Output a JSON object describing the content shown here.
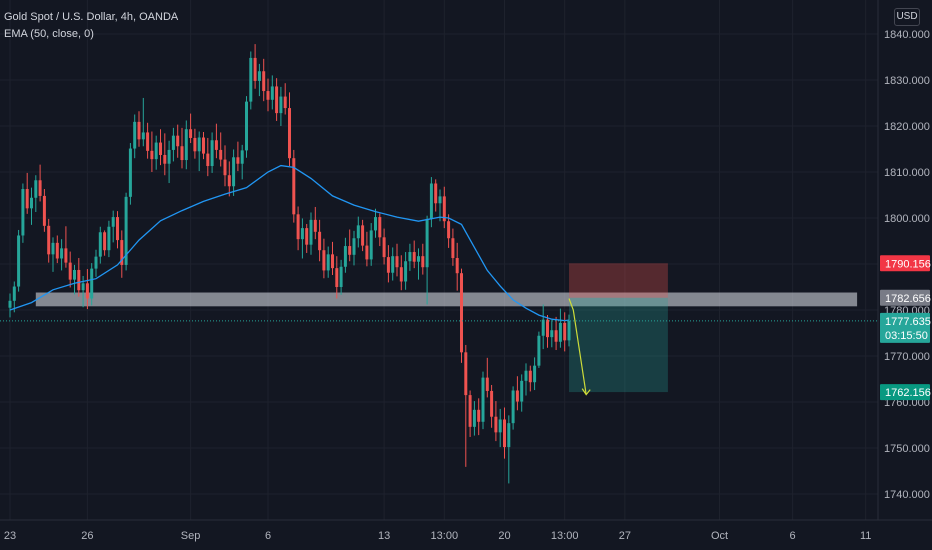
{
  "legend": {
    "title": "Gold Spot / U.S. Dollar, 4h, OANDA",
    "indicator": "EMA (50, close, 0)"
  },
  "currency_button": "USD",
  "colors": {
    "background": "#131722",
    "grid": "#1e222d",
    "up": "#26a69a",
    "down": "#ef5350",
    "ema": "#2196f3",
    "zone": "#d1d4dc",
    "target_badge": "#089981",
    "stop_badge": "#f23645",
    "price_badge": "#26a69a",
    "projection_arrow": "#cddc39"
  },
  "chart_data": {
    "type": "candlestick",
    "symbol": "Gold Spot / U.S. Dollar",
    "interval": "4h",
    "source": "OANDA",
    "ylim": [
      1734,
      1844
    ],
    "y_ticks": [
      1740,
      1750,
      1760,
      1770,
      1780,
      1790,
      1800,
      1810,
      1820,
      1830,
      1840
    ],
    "y_tick_labels": [
      "1740.000",
      "1750.000",
      "1760.000",
      "1770.000",
      "1780.000",
      "1790.000",
      "1800.000",
      "1810.000",
      "1820.000",
      "1830.000",
      "1840.000"
    ],
    "x_ticks": [
      {
        "label": "23",
        "bar": 0
      },
      {
        "label": "26",
        "bar": 18
      },
      {
        "label": "Sep",
        "bar": 42
      },
      {
        "label": "6",
        "bar": 60
      },
      {
        "label": "13",
        "bar": 87
      },
      {
        "label": "13:00",
        "bar": 101
      },
      {
        "label": "20",
        "bar": 115
      },
      {
        "label": "13:00",
        "bar": 129
      },
      {
        "label": "27",
        "bar": 143
      },
      {
        "label": "Oct",
        "bar": 165
      },
      {
        "label": "6",
        "bar": 182
      },
      {
        "label": "11",
        "bar": 199
      }
    ],
    "candles": [
      [
        1780.5,
        1783.6,
        1778.4,
        1782.0
      ],
      [
        1782.0,
        1786.2,
        1779.5,
        1785.1
      ],
      [
        1785.1,
        1797.4,
        1784.0,
        1796.2
      ],
      [
        1796.2,
        1807.5,
        1794.6,
        1806.3
      ],
      [
        1806.3,
        1809.8,
        1800.9,
        1802.1
      ],
      [
        1802.1,
        1806.6,
        1798.5,
        1804.4
      ],
      [
        1804.4,
        1809.3,
        1801.3,
        1808.2
      ],
      [
        1808.2,
        1811.6,
        1803.6,
        1804.8
      ],
      [
        1804.8,
        1806.3,
        1797.0,
        1798.3
      ],
      [
        1798.3,
        1799.8,
        1790.3,
        1792.1
      ],
      [
        1792.1,
        1795.8,
        1788.3,
        1794.6
      ],
      [
        1794.6,
        1796.2,
        1790.2,
        1791.2
      ],
      [
        1791.2,
        1795.4,
        1788.6,
        1793.4
      ],
      [
        1793.4,
        1798.2,
        1789.2,
        1790.3
      ],
      [
        1790.3,
        1792.7,
        1784.9,
        1786.6
      ],
      [
        1786.6,
        1789.8,
        1783.4,
        1788.7
      ],
      [
        1788.7,
        1791.3,
        1782.9,
        1784.3
      ],
      [
        1784.3,
        1787.4,
        1780.6,
        1785.8
      ],
      [
        1785.8,
        1788.9,
        1780.2,
        1782.5
      ],
      [
        1782.5,
        1790.2,
        1781.0,
        1789.0
      ],
      [
        1789.0,
        1793.1,
        1787.2,
        1791.6
      ],
      [
        1791.6,
        1798.1,
        1790.1,
        1796.9
      ],
      [
        1796.9,
        1797.3,
        1791.8,
        1793.0
      ],
      [
        1793.0,
        1799.4,
        1791.5,
        1798.1
      ],
      [
        1798.1,
        1801.6,
        1794.7,
        1800.2
      ],
      [
        1800.2,
        1801.5,
        1793.4,
        1795.2
      ],
      [
        1795.2,
        1797.3,
        1787.0,
        1789.8
      ],
      [
        1789.8,
        1805.5,
        1788.6,
        1804.6
      ],
      [
        1804.6,
        1816.3,
        1802.9,
        1815.1
      ],
      [
        1815.1,
        1822.5,
        1813.0,
        1820.9
      ],
      [
        1820.9,
        1823.2,
        1815.5,
        1817.1
      ],
      [
        1817.1,
        1826.1,
        1815.6,
        1818.6
      ],
      [
        1818.6,
        1820.7,
        1812.9,
        1814.6
      ],
      [
        1814.6,
        1818.8,
        1810.0,
        1812.8
      ],
      [
        1812.8,
        1817.9,
        1810.5,
        1816.4
      ],
      [
        1816.4,
        1819.3,
        1811.5,
        1813.7
      ],
      [
        1813.7,
        1818.4,
        1809.3,
        1811.8
      ],
      [
        1811.8,
        1816.8,
        1807.6,
        1814.8
      ],
      [
        1814.8,
        1819.6,
        1812.3,
        1817.9
      ],
      [
        1817.9,
        1820.3,
        1813.1,
        1815.6
      ],
      [
        1815.6,
        1819.6,
        1810.8,
        1812.6
      ],
      [
        1812.6,
        1821.2,
        1810.6,
        1819.3
      ],
      [
        1819.3,
        1822.7,
        1816.3,
        1817.4
      ],
      [
        1817.4,
        1819.4,
        1812.9,
        1814.5
      ],
      [
        1814.5,
        1818.8,
        1810.2,
        1817.5
      ],
      [
        1817.5,
        1818.7,
        1812.8,
        1814.0
      ],
      [
        1814.0,
        1817.4,
        1809.1,
        1811.3
      ],
      [
        1811.3,
        1818.6,
        1809.8,
        1816.9
      ],
      [
        1816.9,
        1820.5,
        1813.0,
        1814.8
      ],
      [
        1814.8,
        1818.6,
        1811.2,
        1812.7
      ],
      [
        1812.7,
        1815.8,
        1806.9,
        1809.3
      ],
      [
        1809.3,
        1812.3,
        1804.7,
        1806.9
      ],
      [
        1806.9,
        1814.9,
        1804.8,
        1813.2
      ],
      [
        1813.2,
        1816.6,
        1810.2,
        1811.8
      ],
      [
        1811.8,
        1815.9,
        1808.4,
        1814.7
      ],
      [
        1814.7,
        1826.5,
        1813.1,
        1825.3
      ],
      [
        1825.3,
        1836.2,
        1823.6,
        1834.8
      ],
      [
        1834.8,
        1837.8,
        1828.1,
        1829.8
      ],
      [
        1829.8,
        1833.5,
        1826.5,
        1831.9
      ],
      [
        1831.9,
        1834.6,
        1825.4,
        1827.6
      ],
      [
        1827.6,
        1830.3,
        1823.2,
        1825.7
      ],
      [
        1825.7,
        1831.0,
        1823.6,
        1828.6
      ],
      [
        1828.6,
        1830.4,
        1821.1,
        1822.8
      ],
      [
        1822.8,
        1828.5,
        1820.0,
        1826.4
      ],
      [
        1826.4,
        1829.3,
        1822.5,
        1823.9
      ],
      [
        1823.9,
        1827.3,
        1811.3,
        1813.0
      ],
      [
        1813.0,
        1814.8,
        1799.0,
        1800.8
      ],
      [
        1800.8,
        1802.5,
        1793.0,
        1795.4
      ],
      [
        1795.4,
        1799.9,
        1791.2,
        1797.8
      ],
      [
        1797.8,
        1798.7,
        1792.4,
        1794.2
      ],
      [
        1794.2,
        1801.2,
        1792.0,
        1799.6
      ],
      [
        1799.6,
        1802.4,
        1795.4,
        1797.0
      ],
      [
        1797.0,
        1799.6,
        1790.6,
        1793.0
      ],
      [
        1793.0,
        1795.5,
        1786.9,
        1788.6
      ],
      [
        1788.6,
        1793.8,
        1787.0,
        1792.1
      ],
      [
        1792.1,
        1794.8,
        1787.6,
        1789.1
      ],
      [
        1789.1,
        1791.7,
        1782.5,
        1785.0
      ],
      [
        1785.0,
        1790.9,
        1783.3,
        1789.4
      ],
      [
        1789.4,
        1795.7,
        1788.1,
        1793.9
      ],
      [
        1793.9,
        1797.5,
        1790.6,
        1792.0
      ],
      [
        1792.0,
        1797.2,
        1789.7,
        1795.6
      ],
      [
        1795.6,
        1800.3,
        1793.6,
        1798.4
      ],
      [
        1798.4,
        1799.6,
        1792.8,
        1794.0
      ],
      [
        1794.0,
        1797.0,
        1789.5,
        1791.0
      ],
      [
        1791.0,
        1798.9,
        1789.6,
        1797.3
      ],
      [
        1797.3,
        1802.0,
        1795.7,
        1800.2
      ],
      [
        1800.2,
        1801.0,
        1793.9,
        1795.8
      ],
      [
        1795.8,
        1797.7,
        1789.9,
        1791.5
      ],
      [
        1791.5,
        1794.1,
        1786.0,
        1788.1
      ],
      [
        1788.1,
        1793.6,
        1786.4,
        1791.7
      ],
      [
        1791.7,
        1794.4,
        1787.3,
        1789.3
      ],
      [
        1789.3,
        1791.9,
        1784.3,
        1786.2
      ],
      [
        1786.2,
        1792.6,
        1784.4,
        1790.6
      ],
      [
        1790.6,
        1794.4,
        1788.5,
        1792.6
      ],
      [
        1792.6,
        1795.1,
        1789.1,
        1790.5
      ],
      [
        1790.5,
        1793.4,
        1786.6,
        1791.7
      ],
      [
        1791.7,
        1794.4,
        1787.7,
        1789.3
      ],
      [
        1789.3,
        1800.5,
        1781.2,
        1799.8
      ],
      [
        1799.8,
        1808.9,
        1798.0,
        1807.5
      ],
      [
        1807.5,
        1808.4,
        1801.4,
        1803.2
      ],
      [
        1803.2,
        1806.2,
        1799.3,
        1804.7
      ],
      [
        1804.7,
        1806.8,
        1797.8,
        1799.3
      ],
      [
        1799.3,
        1800.8,
        1793.5,
        1795.6
      ],
      [
        1795.6,
        1797.7,
        1789.6,
        1791.3
      ],
      [
        1791.3,
        1794.6,
        1784.2,
        1788.0
      ],
      [
        1788.0,
        1789.0,
        1768.5,
        1770.8
      ],
      [
        1770.8,
        1772.4,
        1745.9,
        1761.5
      ],
      [
        1761.5,
        1762.5,
        1752.4,
        1754.6
      ],
      [
        1754.6,
        1760.2,
        1752.7,
        1758.3
      ],
      [
        1758.3,
        1760.8,
        1752.8,
        1755.7
      ],
      [
        1755.7,
        1766.6,
        1754.1,
        1765.3
      ],
      [
        1765.3,
        1769.6,
        1761.0,
        1762.4
      ],
      [
        1762.4,
        1763.7,
        1754.4,
        1756.8
      ],
      [
        1756.8,
        1760.2,
        1751.5,
        1753.4
      ],
      [
        1753.4,
        1758.5,
        1750.2,
        1756.2
      ],
      [
        1756.2,
        1758.8,
        1747.7,
        1750.2
      ],
      [
        1750.2,
        1757.1,
        1742.3,
        1755.4
      ],
      [
        1755.4,
        1763.4,
        1754.0,
        1762.5
      ],
      [
        1762.5,
        1765.6,
        1758.2,
        1760.1
      ],
      [
        1760.1,
        1766.0,
        1757.9,
        1764.6
      ],
      [
        1764.6,
        1768.4,
        1761.4,
        1766.8
      ],
      [
        1766.8,
        1767.9,
        1762.3,
        1764.3
      ],
      [
        1764.3,
        1769.7,
        1762.6,
        1767.9
      ],
      [
        1767.9,
        1775.3,
        1767.4,
        1774.4
      ],
      [
        1774.4,
        1781.2,
        1771.5,
        1777.9
      ],
      [
        1777.9,
        1778.9,
        1771.8,
        1774.1
      ],
      [
        1774.1,
        1777.8,
        1771.9,
        1775.6
      ],
      [
        1775.6,
        1778.5,
        1771.3,
        1773.1
      ],
      [
        1773.1,
        1780.3,
        1771.8,
        1777.2
      ],
      [
        1777.2,
        1779.5,
        1771.0,
        1773.4
      ],
      [
        1773.4,
        1779.0,
        1772.1,
        1777.6
      ]
    ],
    "ema": {
      "name": "EMA (50, close, 0)",
      "points": [
        [
          0,
          1780.0
        ],
        [
          5,
          1781.6
        ],
        [
          10,
          1784.4
        ],
        [
          15,
          1785.8
        ],
        [
          20,
          1786.8
        ],
        [
          25,
          1789.8
        ],
        [
          30,
          1795.2
        ],
        [
          35,
          1799.4
        ],
        [
          40,
          1801.6
        ],
        [
          45,
          1803.6
        ],
        [
          50,
          1805.2
        ],
        [
          55,
          1806.6
        ],
        [
          60,
          1810.0
        ],
        [
          63,
          1811.4
        ],
        [
          66,
          1811.0
        ],
        [
          70,
          1808.6
        ],
        [
          75,
          1804.8
        ],
        [
          80,
          1802.8
        ],
        [
          85,
          1801.4
        ],
        [
          90,
          1800.2
        ],
        [
          95,
          1799.3
        ],
        [
          100,
          1800.2
        ],
        [
          102,
          1800.0
        ],
        [
          105,
          1798.6
        ],
        [
          108,
          1793.6
        ],
        [
          111,
          1788.6
        ],
        [
          114,
          1785.2
        ],
        [
          117,
          1782.2
        ],
        [
          120,
          1780.4
        ],
        [
          123,
          1778.9
        ],
        [
          126,
          1778.0
        ],
        [
          129,
          1777.7
        ],
        [
          130,
          1777.8
        ]
      ]
    },
    "current_price": 1777.635,
    "countdown": "03:15:50",
    "price_labels": {
      "stop": "1790.156",
      "entry": "1782.656",
      "current": "1777.635",
      "target": "1762.156"
    },
    "drawings": {
      "resistance_zone": {
        "from_bar": 6,
        "to_bar": 197,
        "price_low": 1780.8,
        "price_high": 1783.8
      },
      "short_position": {
        "from_bar": 130,
        "to_bar": 153,
        "entry": 1782.656,
        "stop": 1790.156,
        "target": 1762.156
      },
      "projection_arrow": {
        "from": [
          130,
          1782.5
        ],
        "via": [
          131,
          1780.0
        ],
        "to": [
          134,
          1761.6
        ]
      }
    }
  }
}
